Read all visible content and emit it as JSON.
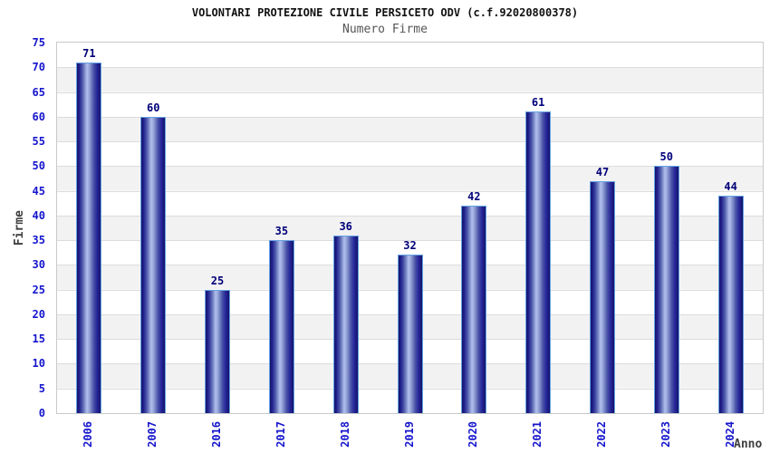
{
  "chart_data": {
    "type": "bar",
    "title": "VOLONTARI PROTEZIONE CIVILE PERSICETO ODV (c.f.92020800378)",
    "subtitle": "Numero Firme",
    "categories": [
      "2006",
      "2007",
      "2016",
      "2017",
      "2018",
      "2019",
      "2020",
      "2021",
      "2022",
      "2023",
      "2024"
    ],
    "values": [
      71,
      60,
      25,
      35,
      36,
      32,
      42,
      61,
      47,
      50,
      44
    ],
    "xlabel": "Anno",
    "ylabel": "Firme",
    "ylim": [
      0,
      75
    ],
    "ytick_step": 5,
    "grid": true,
    "legend_position": "none",
    "bar_value_labels": [
      71,
      60,
      25,
      35,
      36,
      32,
      42,
      61,
      47,
      50,
      44
    ],
    "colors": {
      "tick_label_blue": "#1515cd",
      "bar_value_navy": "#00007a",
      "bar_dark": "#14146a",
      "bar_highlight": "#b0bfeb",
      "bar_border": "#64a2e2",
      "band_white": "#ffffff",
      "band_gray": "#f2f2f2",
      "gridline": "#dcdcdc",
      "plot_border": "#c9c9c9",
      "title_color": "#111111",
      "subtitle_color": "#555555",
      "axis_title_color": "#3f3f3f",
      "background": "#ffffff"
    }
  }
}
